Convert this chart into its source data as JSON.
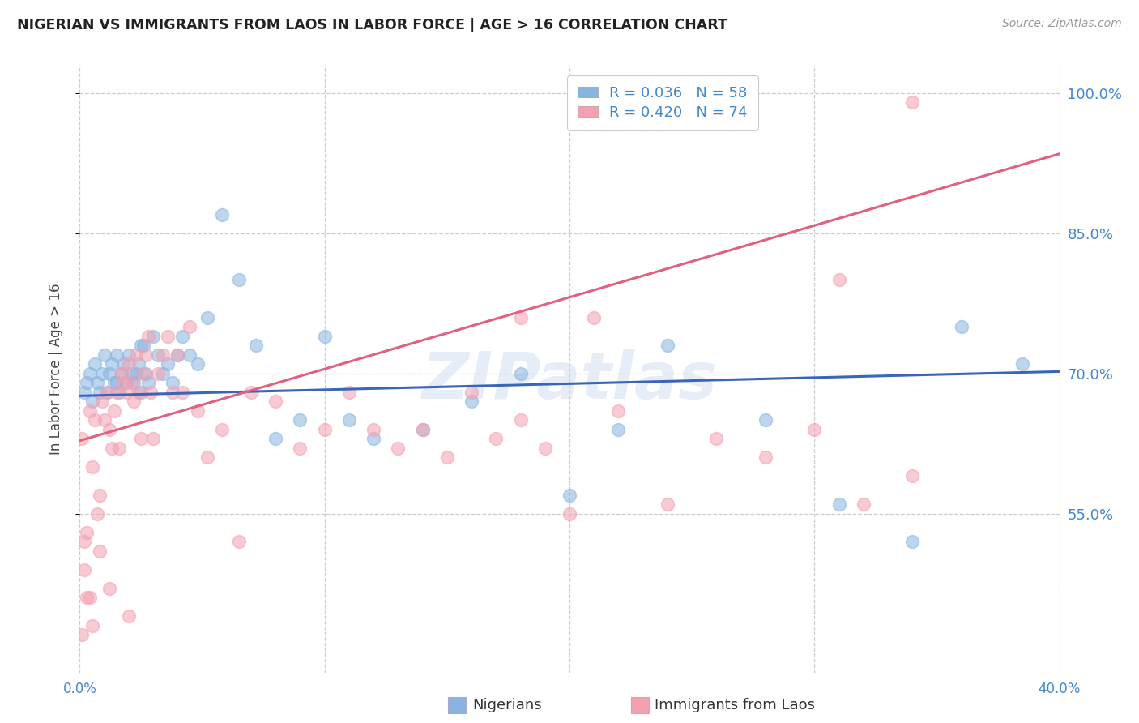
{
  "title": "NIGERIAN VS IMMIGRANTS FROM LAOS IN LABOR FORCE | AGE > 16 CORRELATION CHART",
  "source": "Source: ZipAtlas.com",
  "ylabel": "In Labor Force | Age > 16",
  "xlim": [
    0.0,
    0.4
  ],
  "ylim": [
    0.38,
    1.03
  ],
  "blue_R": 0.036,
  "blue_N": 58,
  "pink_R": 0.42,
  "pink_N": 74,
  "blue_color": "#89B4E0",
  "pink_color": "#F4A0B0",
  "blue_line_color": "#3A66B8",
  "pink_line_color": "#E06080",
  "nigerians_label": "Nigerians",
  "laos_label": "Immigrants from Laos",
  "watermark": "ZIPatlas",
  "background_color": "#FFFFFF",
  "grid_color": "#CCCCCC",
  "title_color": "#222222",
  "blue_line_x": [
    0.0,
    0.4
  ],
  "blue_line_y": [
    0.676,
    0.702
  ],
  "pink_line_x": [
    0.0,
    0.4
  ],
  "pink_line_y": [
    0.628,
    0.935
  ],
  "blue_scatter_x": [
    0.002,
    0.003,
    0.004,
    0.005,
    0.006,
    0.007,
    0.008,
    0.009,
    0.01,
    0.011,
    0.012,
    0.013,
    0.014,
    0.015,
    0.016,
    0.017,
    0.018,
    0.019,
    0.02,
    0.021,
    0.022,
    0.023,
    0.024,
    0.025,
    0.026,
    0.027,
    0.028,
    0.03,
    0.032,
    0.034,
    0.036,
    0.038,
    0.04,
    0.042,
    0.045,
    0.048,
    0.052,
    0.058,
    0.065,
    0.072,
    0.08,
    0.09,
    0.1,
    0.11,
    0.12,
    0.14,
    0.16,
    0.18,
    0.2,
    0.22,
    0.24,
    0.28,
    0.31,
    0.34,
    0.36,
    0.385,
    0.025,
    0.015
  ],
  "blue_scatter_y": [
    0.68,
    0.69,
    0.7,
    0.67,
    0.71,
    0.69,
    0.68,
    0.7,
    0.72,
    0.68,
    0.7,
    0.71,
    0.69,
    0.72,
    0.68,
    0.7,
    0.71,
    0.69,
    0.72,
    0.7,
    0.69,
    0.7,
    0.71,
    0.68,
    0.73,
    0.7,
    0.69,
    0.74,
    0.72,
    0.7,
    0.71,
    0.69,
    0.72,
    0.74,
    0.72,
    0.71,
    0.76,
    0.87,
    0.8,
    0.73,
    0.63,
    0.65,
    0.74,
    0.65,
    0.63,
    0.64,
    0.67,
    0.7,
    0.57,
    0.64,
    0.73,
    0.65,
    0.56,
    0.52,
    0.75,
    0.71,
    0.73,
    0.69
  ],
  "pink_scatter_x": [
    0.001,
    0.002,
    0.003,
    0.004,
    0.005,
    0.006,
    0.007,
    0.008,
    0.009,
    0.01,
    0.011,
    0.012,
    0.013,
    0.014,
    0.015,
    0.016,
    0.017,
    0.018,
    0.019,
    0.02,
    0.021,
    0.022,
    0.023,
    0.024,
    0.025,
    0.026,
    0.027,
    0.028,
    0.029,
    0.03,
    0.032,
    0.034,
    0.036,
    0.038,
    0.04,
    0.042,
    0.045,
    0.048,
    0.052,
    0.058,
    0.065,
    0.07,
    0.08,
    0.09,
    0.1,
    0.11,
    0.12,
    0.13,
    0.14,
    0.15,
    0.16,
    0.17,
    0.18,
    0.19,
    0.2,
    0.21,
    0.22,
    0.24,
    0.26,
    0.28,
    0.3,
    0.31,
    0.32,
    0.34,
    0.003,
    0.005,
    0.008,
    0.012,
    0.02,
    0.001,
    0.002,
    0.004,
    0.34,
    0.18
  ],
  "pink_scatter_y": [
    0.63,
    0.49,
    0.53,
    0.66,
    0.6,
    0.65,
    0.55,
    0.57,
    0.67,
    0.65,
    0.68,
    0.64,
    0.62,
    0.66,
    0.68,
    0.62,
    0.7,
    0.69,
    0.68,
    0.71,
    0.69,
    0.67,
    0.72,
    0.68,
    0.63,
    0.7,
    0.72,
    0.74,
    0.68,
    0.63,
    0.7,
    0.72,
    0.74,
    0.68,
    0.72,
    0.68,
    0.75,
    0.66,
    0.61,
    0.64,
    0.52,
    0.68,
    0.67,
    0.62,
    0.64,
    0.68,
    0.64,
    0.62,
    0.64,
    0.61,
    0.68,
    0.63,
    0.65,
    0.62,
    0.55,
    0.76,
    0.66,
    0.56,
    0.63,
    0.61,
    0.64,
    0.8,
    0.56,
    0.59,
    0.46,
    0.43,
    0.51,
    0.47,
    0.44,
    0.42,
    0.52,
    0.46,
    0.99,
    0.76
  ]
}
